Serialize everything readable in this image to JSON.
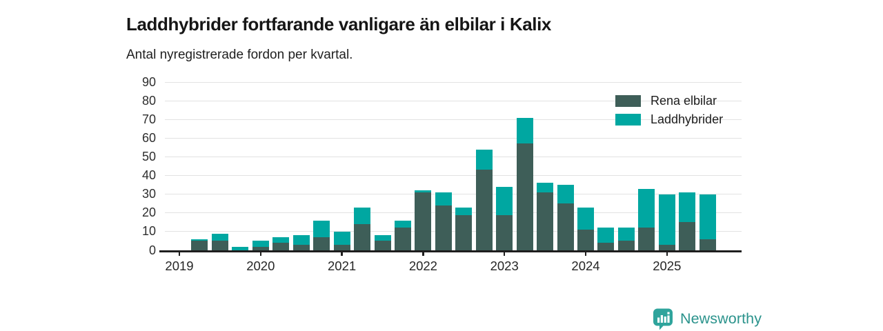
{
  "header": {
    "title": "Laddhybrider fortfarande vanligare än elbilar i Kalix",
    "subtitle": "Antal nyregistrerade fordon per kvartal."
  },
  "legend": [
    {
      "label": "Rena elbilar",
      "color": "#3e5e58"
    },
    {
      "label": "Laddhybrider",
      "color": "#00a7a1"
    }
  ],
  "chart_data": {
    "type": "bar",
    "stacked": true,
    "title": "Laddhybrider fortfarande vanligare än elbilar i Kalix",
    "subtitle": "Antal nyregistrerade fordon per kvartal.",
    "categories": [
      "2019 Q1",
      "2019 Q2",
      "2019 Q3",
      "2019 Q4",
      "2020 Q1",
      "2020 Q2",
      "2020 Q3",
      "2020 Q4",
      "2021 Q1",
      "2021 Q2",
      "2021 Q3",
      "2021 Q4",
      "2022 Q1",
      "2022 Q2",
      "2022 Q3",
      "2022 Q4",
      "2023 Q1",
      "2023 Q2",
      "2023 Q3",
      "2023 Q4",
      "2024 Q1",
      "2024 Q2",
      "2024 Q3",
      "2024 Q4",
      "2025 Q1",
      "2025 Q2",
      "2025 Q3"
    ],
    "series": [
      {
        "name": "Rena elbilar",
        "color": "#3e5e58",
        "values": [
          0,
          5,
          5,
          0,
          2,
          4,
          3,
          7,
          3,
          14,
          5,
          12,
          31,
          24,
          19,
          43,
          19,
          57,
          31,
          25,
          11,
          4,
          5,
          12,
          3,
          15,
          6
        ]
      },
      {
        "name": "Laddhybrider",
        "color": "#00a7a1",
        "values": [
          0,
          1,
          4,
          2,
          3,
          3,
          5,
          9,
          7,
          9,
          3,
          4,
          1,
          7,
          4,
          11,
          15,
          14,
          5,
          10,
          12,
          8,
          7,
          21,
          27,
          16,
          24
        ]
      }
    ],
    "x_tick_labels": [
      "2019",
      "2020",
      "2021",
      "2022",
      "2023",
      "2024",
      "2025"
    ],
    "xlabel": "",
    "ylabel": "",
    "ylim": [
      0,
      90
    ],
    "y_tick_step": 10,
    "grid": true,
    "legend_position": "top-right",
    "colors": {
      "grid": "#e2e2e2",
      "axis": "#1e1e1e",
      "text": "#2e2e2e"
    }
  },
  "footer": {
    "brand": "Newsworthy",
    "brand_text_color": "#2b938c",
    "brand_icon_color": "#2fa49c"
  }
}
